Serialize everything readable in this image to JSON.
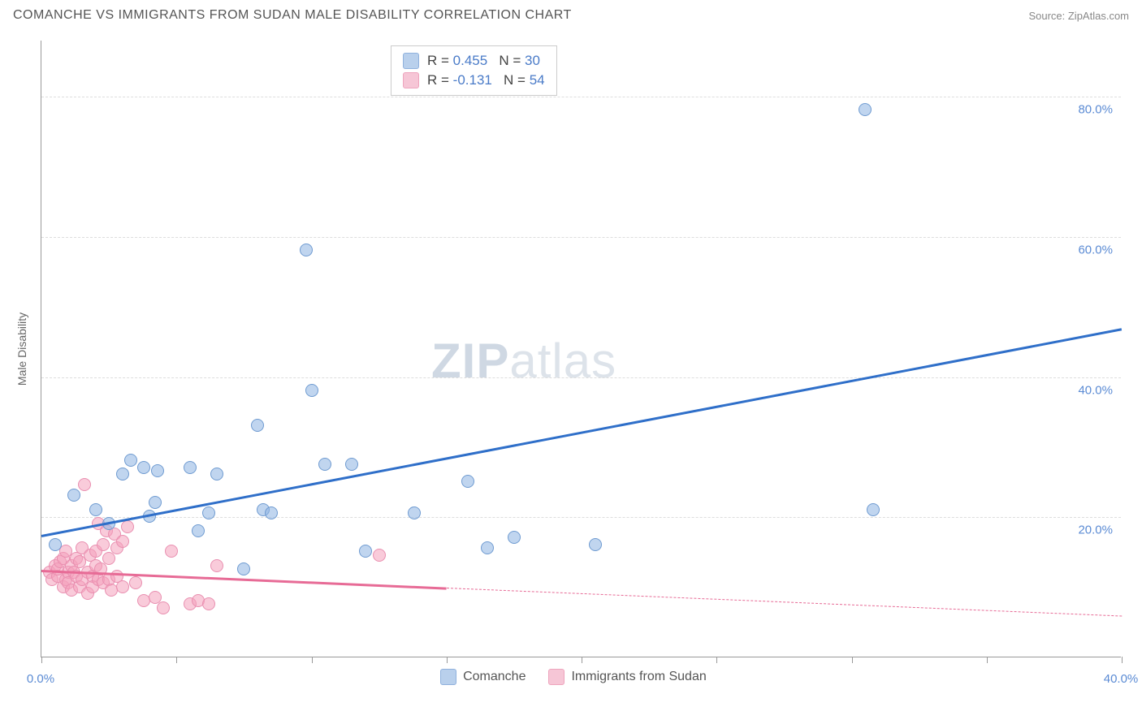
{
  "header": {
    "title": "COMANCHE VS IMMIGRANTS FROM SUDAN MALE DISABILITY CORRELATION CHART",
    "source": "Source: ZipAtlas.com"
  },
  "watermark": {
    "zip": "ZIP",
    "atlas": "atlas"
  },
  "chart": {
    "type": "scatter",
    "ylabel": "Male Disability",
    "background_color": "#ffffff",
    "grid_color": "#dddddd",
    "axis_color": "#999999",
    "label_fontsize": 14,
    "tick_fontsize": 15,
    "tick_color": "#5b8bd4",
    "xlim": [
      0,
      40
    ],
    "ylim": [
      0,
      88
    ],
    "y_ticks": [
      {
        "v": 20,
        "label": "20.0%"
      },
      {
        "v": 40,
        "label": "40.0%"
      },
      {
        "v": 60,
        "label": "60.0%"
      },
      {
        "v": 80,
        "label": "80.0%"
      }
    ],
    "x_ticks": [
      {
        "v": 0,
        "label": "0.0%"
      },
      {
        "v": 5,
        "label": ""
      },
      {
        "v": 10,
        "label": ""
      },
      {
        "v": 15,
        "label": ""
      },
      {
        "v": 20,
        "label": ""
      },
      {
        "v": 25,
        "label": ""
      },
      {
        "v": 30,
        "label": ""
      },
      {
        "v": 35,
        "label": ""
      },
      {
        "v": 40,
        "label": "40.0%"
      }
    ],
    "series": [
      {
        "name": "Comanche",
        "color_fill": "rgba(141,178,226,0.55)",
        "color_stroke": "#6f9bd1",
        "trend_color": "#2f6fc9",
        "trend": {
          "x1": 0,
          "y1": 17.5,
          "x2": 40,
          "y2": 47
        },
        "points": [
          [
            0.5,
            16
          ],
          [
            1.2,
            23
          ],
          [
            2.0,
            21
          ],
          [
            2.5,
            19
          ],
          [
            3.0,
            26
          ],
          [
            3.3,
            28
          ],
          [
            3.8,
            27
          ],
          [
            4.0,
            20
          ],
          [
            4.2,
            22
          ],
          [
            4.3,
            26.5
          ],
          [
            5.5,
            27
          ],
          [
            5.8,
            18
          ],
          [
            6.2,
            20.5
          ],
          [
            6.5,
            26
          ],
          [
            7.5,
            12.5
          ],
          [
            8.0,
            33
          ],
          [
            8.2,
            21
          ],
          [
            8.5,
            20.5
          ],
          [
            9.8,
            58
          ],
          [
            10.0,
            38
          ],
          [
            10.5,
            27.5
          ],
          [
            11.5,
            27.5
          ],
          [
            12.0,
            15
          ],
          [
            13.8,
            20.5
          ],
          [
            15.8,
            25
          ],
          [
            16.5,
            15.5
          ],
          [
            17.5,
            17
          ],
          [
            20.5,
            16
          ],
          [
            30.5,
            78
          ],
          [
            30.8,
            21
          ]
        ]
      },
      {
        "name": "Immigrants from Sudan",
        "color_fill": "rgba(244,160,188,0.55)",
        "color_stroke": "#e98fb0",
        "trend_color": "#e76b96",
        "trend": {
          "x1": 0,
          "y1": 12.5,
          "x2": 15,
          "y2": 10
        },
        "trend_ext": {
          "x1": 15,
          "y1": 10,
          "x2": 40,
          "y2": 6
        },
        "points": [
          [
            0.3,
            12
          ],
          [
            0.4,
            11
          ],
          [
            0.5,
            13
          ],
          [
            0.6,
            11.5
          ],
          [
            0.6,
            12.5
          ],
          [
            0.7,
            13.5
          ],
          [
            0.8,
            10
          ],
          [
            0.8,
            14
          ],
          [
            0.9,
            11
          ],
          [
            0.9,
            15
          ],
          [
            1.0,
            12
          ],
          [
            1.0,
            10.5
          ],
          [
            1.1,
            13
          ],
          [
            1.1,
            9.5
          ],
          [
            1.2,
            12
          ],
          [
            1.3,
            11.5
          ],
          [
            1.3,
            14
          ],
          [
            1.4,
            10
          ],
          [
            1.4,
            13.5
          ],
          [
            1.5,
            11
          ],
          [
            1.5,
            15.5
          ],
          [
            1.6,
            24.5
          ],
          [
            1.7,
            12
          ],
          [
            1.7,
            9
          ],
          [
            1.8,
            14.5
          ],
          [
            1.9,
            11.5
          ],
          [
            1.9,
            10
          ],
          [
            2.0,
            15
          ],
          [
            2.0,
            13
          ],
          [
            2.1,
            11
          ],
          [
            2.1,
            19
          ],
          [
            2.2,
            12.5
          ],
          [
            2.3,
            16
          ],
          [
            2.3,
            10.5
          ],
          [
            2.4,
            18
          ],
          [
            2.5,
            11
          ],
          [
            2.5,
            14
          ],
          [
            2.6,
            9.5
          ],
          [
            2.7,
            17.5
          ],
          [
            2.8,
            11.5
          ],
          [
            2.8,
            15.5
          ],
          [
            3.0,
            10
          ],
          [
            3.0,
            16.5
          ],
          [
            3.2,
            18.5
          ],
          [
            3.5,
            10.5
          ],
          [
            3.8,
            8
          ],
          [
            4.2,
            8.5
          ],
          [
            4.5,
            7
          ],
          [
            4.8,
            15
          ],
          [
            5.5,
            7.5
          ],
          [
            5.8,
            8
          ],
          [
            6.2,
            7.5
          ],
          [
            6.5,
            13
          ],
          [
            12.5,
            14.5
          ]
        ]
      }
    ],
    "stats_box": {
      "rows": [
        {
          "swatch_fill": "#b9d0ec",
          "swatch_stroke": "#8fb1dd",
          "r_label": "R = ",
          "r": "0.455",
          "n_label": "   N = ",
          "n": "30"
        },
        {
          "swatch_fill": "#f6c6d6",
          "swatch_stroke": "#eea4bd",
          "r_label": "R = ",
          "r": "-0.131",
          "n_label": "   N = ",
          "n": "54"
        }
      ]
    },
    "legend": {
      "items": [
        {
          "label": "Comanche",
          "fill": "#b9d0ec",
          "stroke": "#8fb1dd"
        },
        {
          "label": "Immigrants from Sudan",
          "fill": "#f6c6d6",
          "stroke": "#eea4bd"
        }
      ]
    }
  }
}
